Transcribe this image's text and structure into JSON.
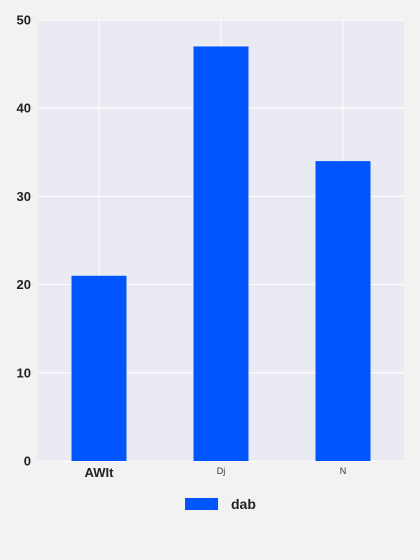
{
  "chart_data": {
    "type": "bar",
    "categories": [
      "AWIt",
      "Dj",
      "N"
    ],
    "series": [
      {
        "name": "dab",
        "values": [
          21,
          47,
          34
        ],
        "color": "#0055ff"
      }
    ],
    "title": "",
    "xlabel": "",
    "ylabel": "",
    "ylim": [
      0,
      50
    ],
    "yticks": [
      0,
      10,
      20,
      30,
      40,
      50
    ],
    "grid": true,
    "legend_position": "bottom-center",
    "plot_background": "#eaeaf2",
    "page_background": "#f2f2f2"
  }
}
